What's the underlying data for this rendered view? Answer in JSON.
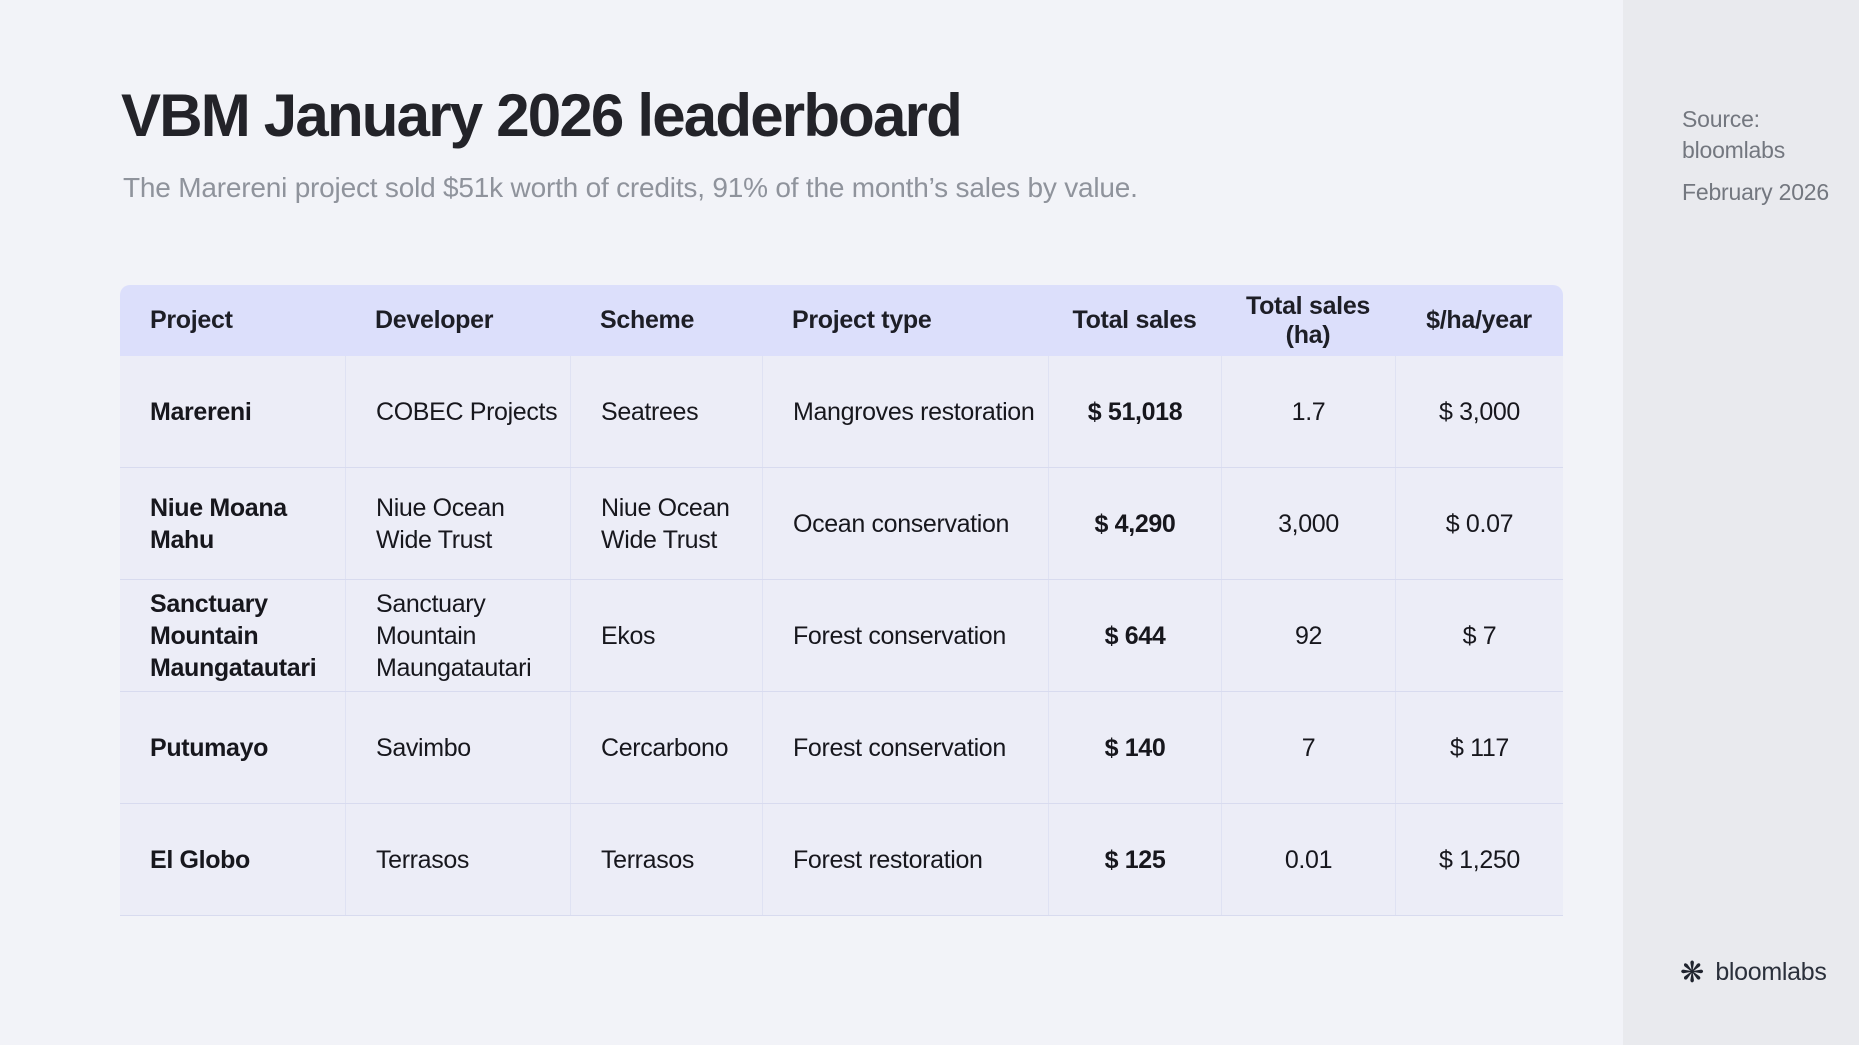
{
  "page": {
    "title": "VBM January 2026 leaderboard",
    "subtitle": "The Marereni project sold $51k worth of credits, 91% of the month’s sales by value."
  },
  "chart_data": {
    "type": "table",
    "title": "VBM January 2026 leaderboard",
    "subtitle": "The Marereni project sold $51k worth of credits, 91% of the month’s sales by value.",
    "columns": [
      "Project",
      "Developer",
      "Scheme",
      "Project type",
      "Total sales",
      "Total sales (ha)",
      "$/ha/year"
    ],
    "rows": [
      [
        "Marereni",
        "COBEC Projects",
        "Seatrees",
        "Mangroves restoration",
        "$ 51,018",
        "1.7",
        "$ 3,000"
      ],
      [
        "Niue Moana Mahu",
        "Niue Ocean Wide Trust",
        "Niue Ocean Wide Trust",
        "Ocean conservation",
        "$ 4,290",
        "3,000",
        "$ 0.07"
      ],
      [
        "Sanctuary Mountain Maungatautari",
        "Sanctuary Mountain Maungatautari",
        "Ekos",
        "Forest conservation",
        "$ 644",
        "92",
        "$ 7"
      ],
      [
        "Putumayo",
        "Savimbo",
        "Cercarbono",
        "Forest conservation",
        "$ 140",
        "7",
        "$ 117"
      ],
      [
        "El Globo",
        "Terrasos",
        "Terrasos",
        "Forest restoration",
        "$ 125",
        "0.01",
        "$ 1,250"
      ]
    ]
  },
  "sidebar": {
    "source_label": "Source:",
    "source_name": "bloomlabs",
    "date": "February 2026",
    "brand_name": "bloomlabs",
    "brand_icon": "pinwheel-flower-icon",
    "brand_icon_glyph": "❋"
  },
  "colors": {
    "page_background": "#f2f3f8",
    "sidebar_background": "#e9eaee",
    "table_header_background": "#dcdffb",
    "table_row_background": "#ecedf7",
    "table_divider": "#d8dbef",
    "title_text": "#232329",
    "subtitle_text": "#8f939c",
    "body_text": "#17171d",
    "sidebar_text": "#73777f",
    "brand_text": "#2b303b"
  }
}
